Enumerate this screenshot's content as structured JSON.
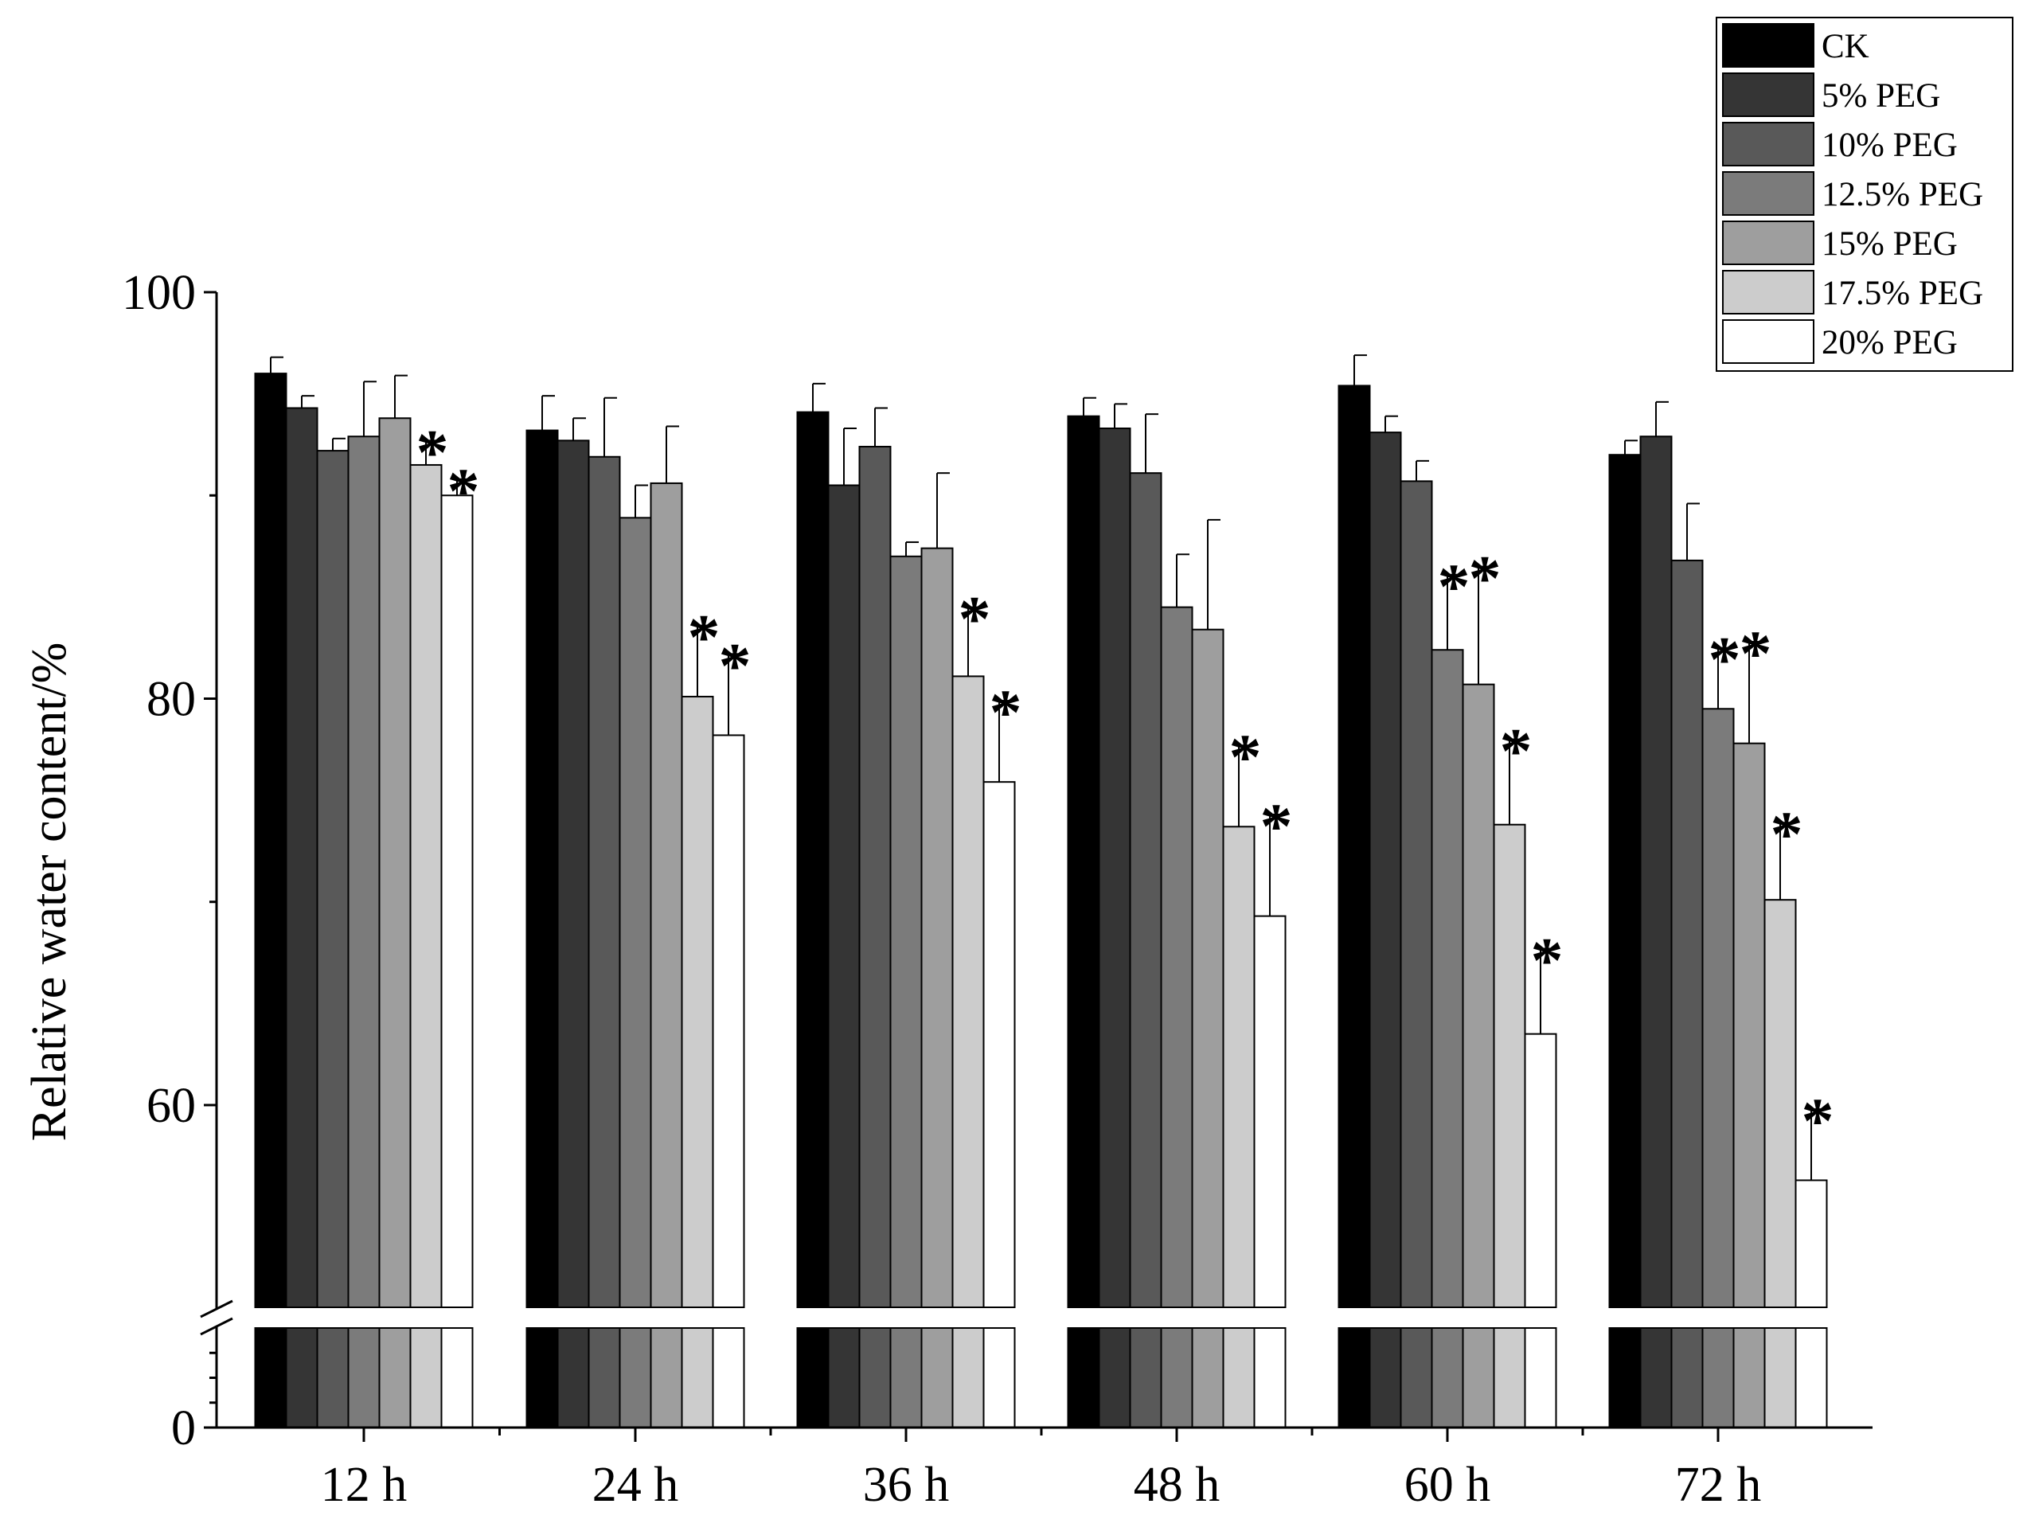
{
  "chart_data": {
    "type": "bar",
    "title": "",
    "xlabel": "",
    "ylabel": "Relative water content/%",
    "categories": [
      "12 h",
      "24 h",
      "36 h",
      "48 h",
      "60 h",
      "72 h"
    ],
    "ylim": [
      0,
      100
    ],
    "axis_break": {
      "from": 2,
      "to": 51
    },
    "y_ticks_upper": [
      60,
      80,
      100
    ],
    "y_ticks_lower": [
      0
    ],
    "legend_position": "top-right",
    "grid": false,
    "series": [
      {
        "name": "CK",
        "color": "#000000",
        "values": [
          96.0,
          93.2,
          94.1,
          93.9,
          95.4,
          92.0
        ],
        "errors": [
          0.8,
          1.7,
          1.4,
          0.9,
          1.5,
          0.7
        ],
        "significant": [
          false,
          false,
          false,
          false,
          false,
          false
        ]
      },
      {
        "name": "5% PEG",
        "color": "#353535",
        "values": [
          94.3,
          92.7,
          90.5,
          93.3,
          93.1,
          92.9
        ],
        "errors": [
          0.6,
          1.1,
          2.8,
          1.2,
          0.8,
          1.7
        ],
        "significant": [
          false,
          false,
          false,
          false,
          false,
          false
        ]
      },
      {
        "name": "10% PEG",
        "color": "#595959",
        "values": [
          92.2,
          91.9,
          92.4,
          91.1,
          90.7,
          86.8
        ],
        "errors": [
          0.6,
          2.9,
          1.9,
          2.9,
          1.0,
          2.8
        ],
        "significant": [
          false,
          false,
          false,
          false,
          false,
          false
        ]
      },
      {
        "name": "12.5% PEG",
        "color": "#7b7b7b",
        "values": [
          92.9,
          88.9,
          87.0,
          84.5,
          82.4,
          79.5
        ],
        "errors": [
          2.7,
          1.6,
          0.7,
          2.6,
          3.7,
          3.0
        ],
        "significant": [
          false,
          false,
          false,
          false,
          true,
          true
        ]
      },
      {
        "name": "15% PEG",
        "color": "#9e9e9e",
        "values": [
          93.8,
          90.6,
          87.4,
          83.4,
          80.7,
          77.8
        ],
        "errors": [
          2.1,
          2.8,
          3.7,
          5.4,
          5.8,
          5.0
        ],
        "significant": [
          false,
          false,
          false,
          false,
          true,
          true
        ]
      },
      {
        "name": "17.5% PEG",
        "color": "#cccccc",
        "values": [
          91.5,
          80.1,
          81.1,
          73.7,
          73.8,
          70.1
        ],
        "errors": [
          1.2,
          3.5,
          3.4,
          4.0,
          4.2,
          3.8
        ],
        "significant": [
          true,
          true,
          true,
          true,
          true,
          true
        ]
      },
      {
        "name": "20% PEG",
        "color": "#ffffff",
        "values": [
          90.0,
          78.2,
          75.9,
          69.3,
          63.5,
          56.3
        ],
        "errors": [
          0.8,
          4.0,
          4.0,
          5.0,
          4.2,
          3.5
        ],
        "significant": [
          true,
          true,
          true,
          true,
          true,
          true
        ]
      }
    ]
  }
}
